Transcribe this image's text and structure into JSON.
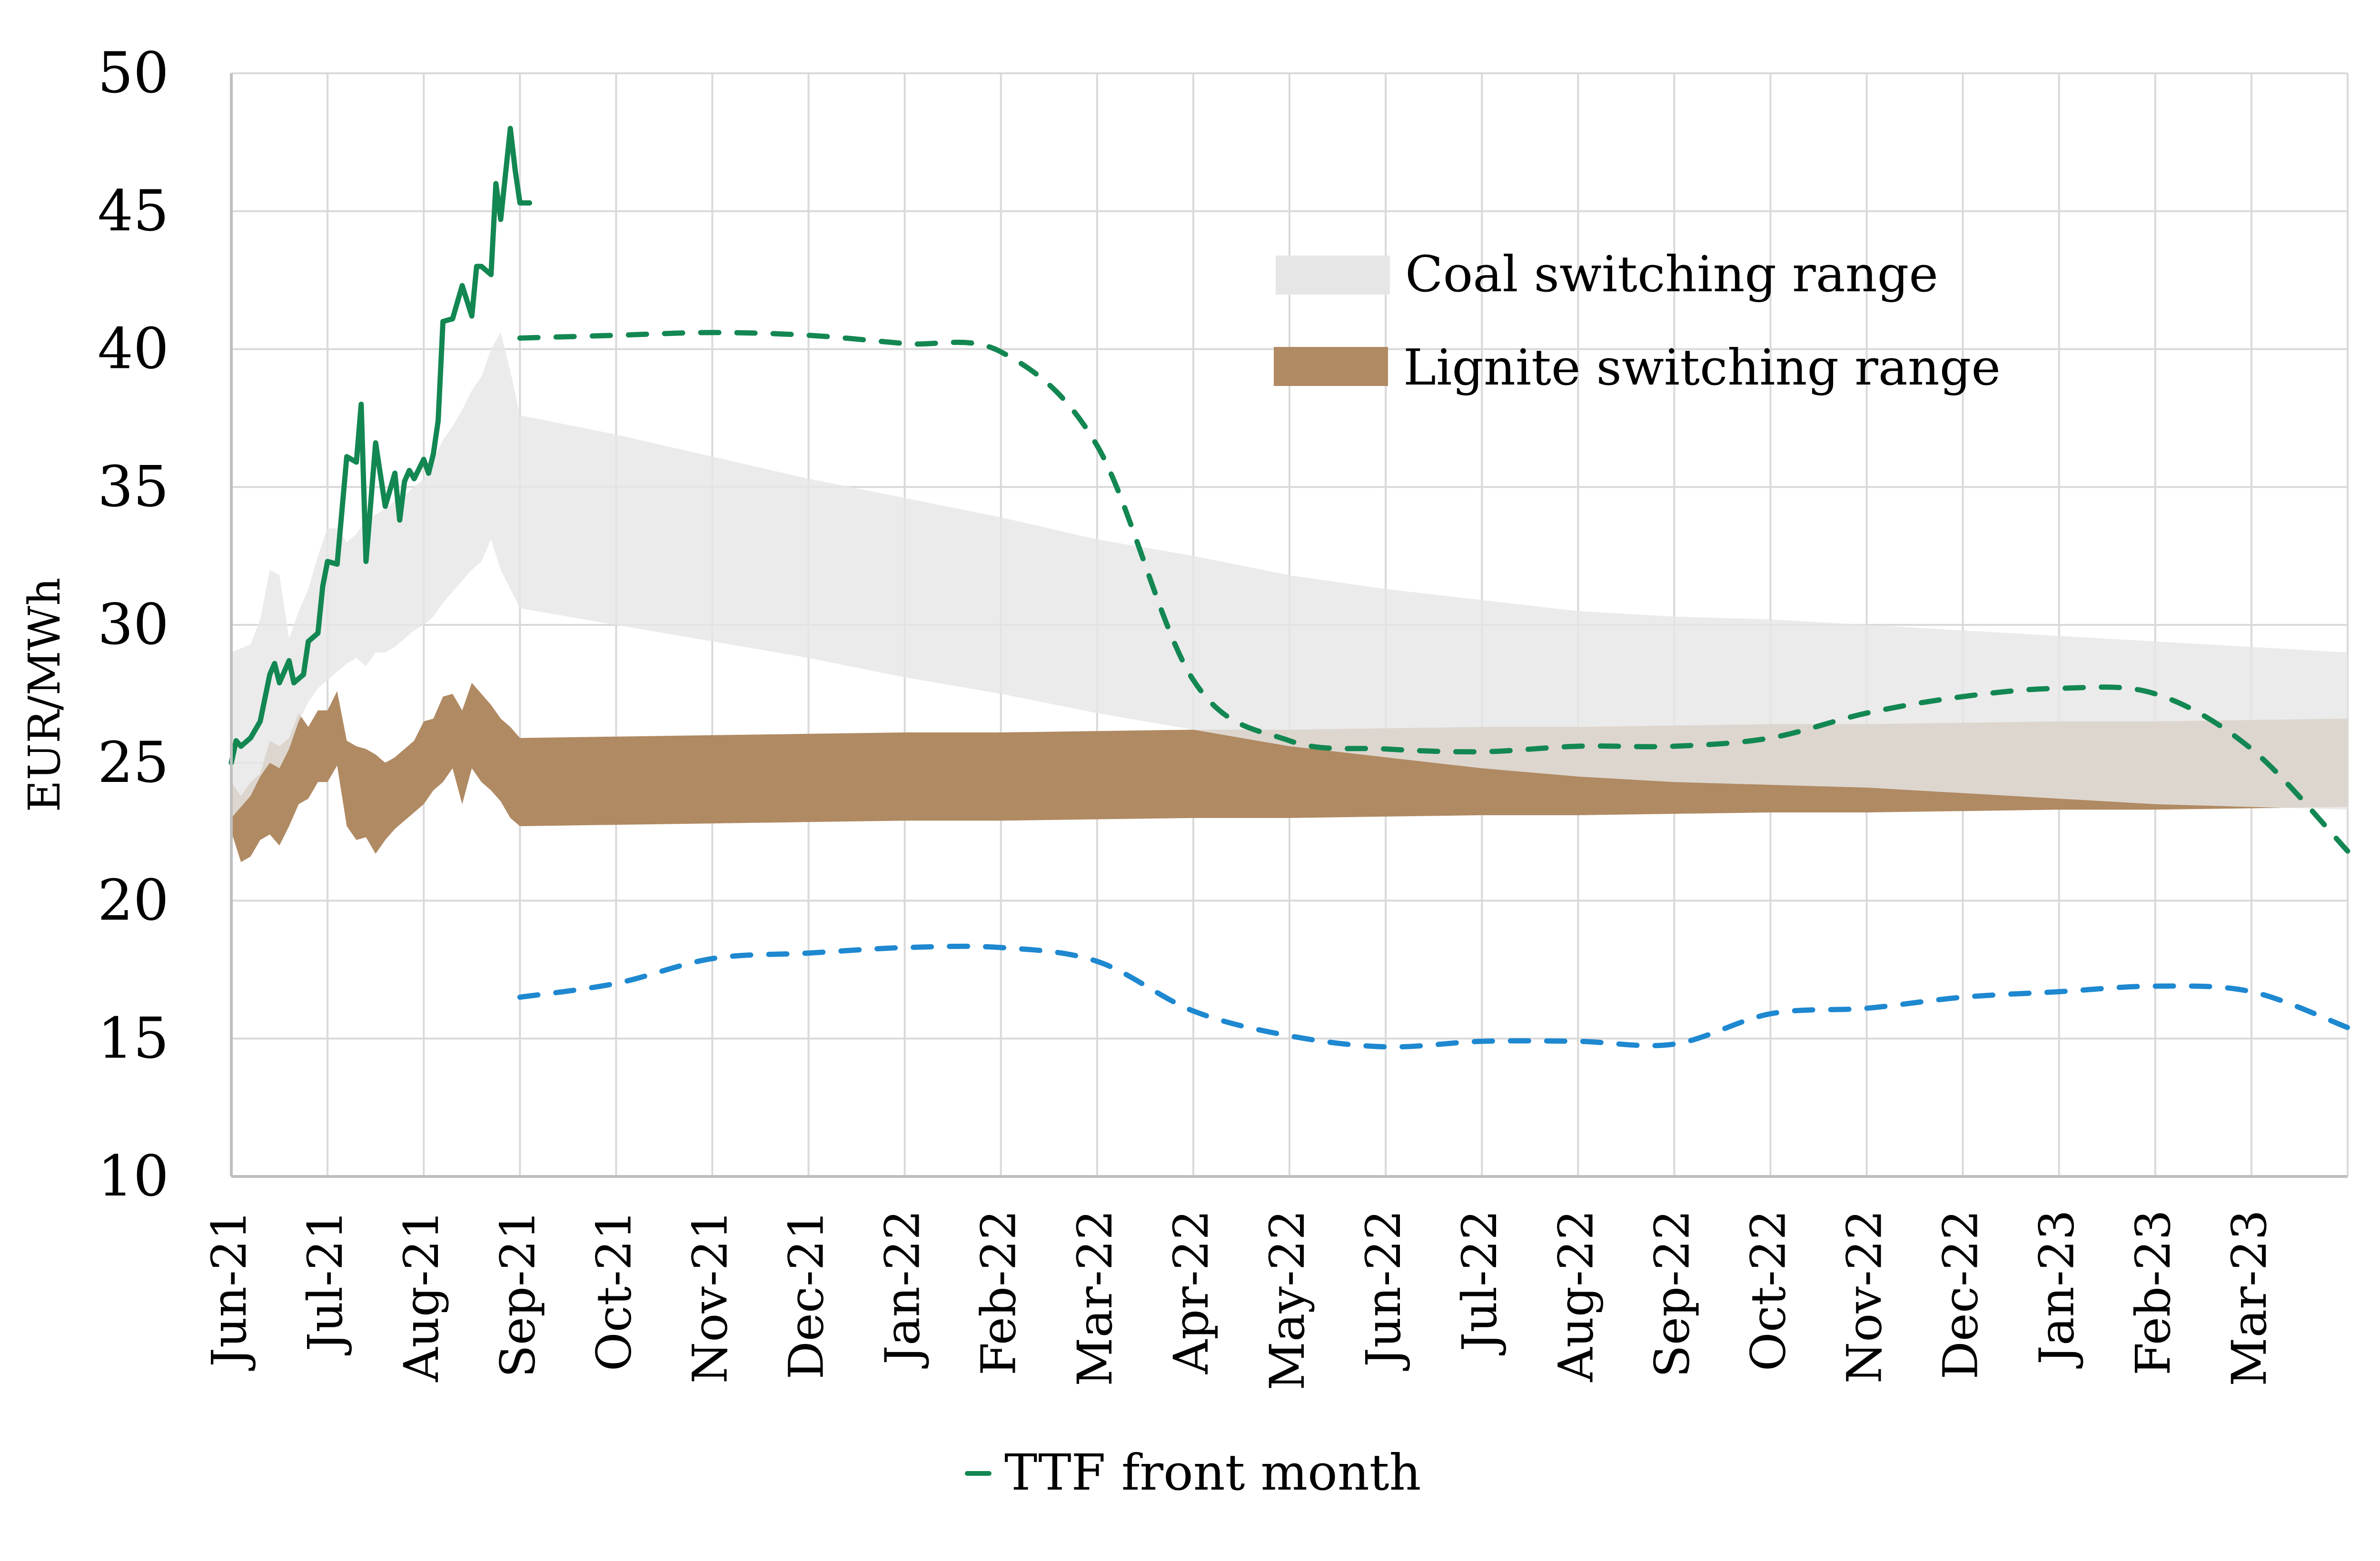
{
  "chart_data": {
    "type": "line",
    "title": "",
    "xlabel": "",
    "ylabel": "EUR/MWh",
    "ylim": [
      10,
      50
    ],
    "yticks": [
      10,
      15,
      20,
      25,
      30,
      35,
      40,
      45,
      50
    ],
    "grid": true,
    "x_tick_labels": [
      "Jun-21",
      "Jul-21",
      "Aug-21",
      "Sep-21",
      "Oct-21",
      "Nov-21",
      "Dec-21",
      "Jan-22",
      "Feb-22",
      "Mar-22",
      "Apr-22",
      "May-22",
      "Jun-22",
      "Jul-22",
      "Aug-22",
      "Sep-22",
      "Oct-22",
      "Nov-22",
      "Dec-22",
      "Jan-23",
      "Feb-23",
      "Mar-23"
    ],
    "x_range_months": [
      0,
      22
    ],
    "forward_x_months": [
      3,
      4,
      5,
      6,
      7,
      8,
      9,
      10,
      11,
      12,
      13,
      14,
      15,
      16,
      17,
      18,
      19,
      20,
      21,
      22
    ],
    "legend": {
      "placement": "top-right",
      "entries": [
        {
          "label": "Coal switching range",
          "color": "#e6e6e6"
        },
        {
          "label": "Lignite switching range",
          "color": "#b08a63"
        }
      ]
    },
    "bottom_legend": {
      "placement": "bottom",
      "entries": [
        {
          "label": "TTF front month",
          "color": "#138752"
        }
      ]
    },
    "colors": {
      "ttf": "#138752",
      "blue_forward": "#1e88d0",
      "coal": "#e6e6e6",
      "lignite": "#b08a63",
      "overlap": "#d9cdc3"
    },
    "series": [
      {
        "name": "TTF front month",
        "style": "solid",
        "x_months": [
          0,
          0.05,
          0.1,
          0.2,
          0.3,
          0.4,
          0.45,
          0.5,
          0.6,
          0.65,
          0.75,
          0.8,
          0.9,
          0.95,
          1.0,
          1.1,
          1.2,
          1.3,
          1.35,
          1.4,
          1.5,
          1.6,
          1.7,
          1.75,
          1.8,
          1.85,
          1.9,
          2.0,
          2.05,
          2.1,
          2.15,
          2.2,
          2.3,
          2.4,
          2.5,
          2.55,
          2.6,
          2.7,
          2.75,
          2.8,
          2.9,
          2.95,
          3.0,
          3.05,
          3.1
        ],
        "values": [
          25.0,
          25.8,
          25.6,
          25.9,
          26.5,
          28.2,
          28.6,
          27.9,
          28.7,
          27.9,
          28.2,
          29.4,
          29.7,
          31.4,
          32.3,
          32.2,
          36.1,
          35.9,
          38.0,
          32.3,
          36.6,
          34.3,
          35.5,
          33.8,
          35.2,
          35.6,
          35.3,
          36.0,
          35.5,
          36.2,
          37.4,
          41.0,
          41.1,
          42.3,
          41.2,
          43.0,
          43.0,
          42.7,
          46.0,
          44.7,
          48.0,
          46.5,
          45.3,
          45.3,
          45.3
        ]
      },
      {
        "name": "TTF forward curve",
        "style": "dashed",
        "values": [
          40.4,
          40.5,
          40.6,
          40.5,
          40.2,
          39.9,
          36.5,
          28.0,
          25.8,
          25.5,
          25.4,
          25.6,
          25.6,
          25.9,
          26.8,
          27.4,
          27.7,
          27.5,
          25.5,
          21.8
        ]
      },
      {
        "name": "Blue forward curve",
        "style": "dashed",
        "values": [
          16.5,
          17.0,
          17.9,
          18.1,
          18.3,
          18.3,
          17.8,
          16.0,
          15.1,
          14.7,
          14.9,
          14.9,
          14.8,
          15.9,
          16.1,
          16.5,
          16.7,
          16.9,
          16.7,
          15.4
        ]
      }
    ],
    "bands": [
      {
        "name": "Coal switching range",
        "hist_x_months": [
          0,
          0.2,
          0.3,
          0.4,
          0.5,
          0.6,
          0.7,
          0.8,
          0.9,
          1.0,
          1.1,
          1.2,
          1.3,
          1.4,
          1.5,
          1.6,
          1.7,
          1.8,
          1.9,
          2.0,
          2.1,
          2.2,
          2.3,
          2.4,
          2.5,
          2.6,
          2.7,
          2.8,
          2.9,
          3.0
        ],
        "hist_upper": [
          29.0,
          29.3,
          30.2,
          32.0,
          31.8,
          29.5,
          30.5,
          31.3,
          32.5,
          33.5,
          33.5,
          33.0,
          33.3,
          33.8,
          34.0,
          34.2,
          34.5,
          34.7,
          35.0,
          35.3,
          36.0,
          36.7,
          37.2,
          37.8,
          38.5,
          39.0,
          40.0,
          40.6,
          39.2,
          37.6
        ],
        "hist_lower": [
          23.0,
          23.8,
          24.5,
          25.0,
          24.8,
          25.5,
          26.5,
          27.2,
          27.7,
          28.0,
          28.3,
          28.6,
          28.8,
          28.5,
          29.0,
          29.0,
          29.2,
          29.5,
          29.8,
          30.0,
          30.3,
          30.8,
          31.2,
          31.6,
          32.0,
          32.3,
          33.1,
          32.0,
          31.3,
          30.6
        ],
        "upper": [
          37.6,
          36.9,
          36.1,
          35.3,
          34.6,
          33.9,
          33.1,
          32.5,
          31.8,
          31.3,
          30.9,
          30.5,
          30.3,
          30.2,
          30.0,
          29.8,
          29.6,
          29.4,
          29.2,
          29.0
        ],
        "lower": [
          30.6,
          30.0,
          29.4,
          28.8,
          28.1,
          27.5,
          26.8,
          26.2,
          25.6,
          25.2,
          24.8,
          24.5,
          24.3,
          24.2,
          24.1,
          23.9,
          23.7,
          23.5,
          23.4,
          23.3
        ]
      },
      {
        "name": "Lignite switching range",
        "hist_x_months": [
          0,
          0.1,
          0.2,
          0.3,
          0.4,
          0.5,
          0.6,
          0.7,
          0.8,
          0.9,
          1.0,
          1.1,
          1.2,
          1.3,
          1.4,
          1.5,
          1.6,
          1.7,
          1.8,
          1.9,
          2.0,
          2.1,
          2.2,
          2.3,
          2.4,
          2.5,
          2.6,
          2.7,
          2.8,
          2.9,
          3.0
        ],
        "hist_upper": [
          24.3,
          23.8,
          24.3,
          24.6,
          25.8,
          25.6,
          25.9,
          26.8,
          26.3,
          26.9,
          26.9,
          27.6,
          25.8,
          25.6,
          25.5,
          25.3,
          25.0,
          25.2,
          25.5,
          25.8,
          26.5,
          26.6,
          27.4,
          27.5,
          26.9,
          27.9,
          27.5,
          27.1,
          26.6,
          26.3,
          25.9
        ],
        "hist_lower": [
          22.5,
          21.4,
          21.6,
          22.2,
          22.4,
          22.0,
          22.7,
          23.5,
          23.7,
          24.3,
          24.3,
          24.9,
          22.7,
          22.2,
          22.3,
          21.7,
          22.2,
          22.6,
          22.9,
          23.2,
          23.5,
          24.0,
          24.3,
          24.8,
          23.5,
          24.8,
          24.3,
          24.0,
          23.6,
          23.0,
          22.7
        ],
        "upper": [
          25.9,
          25.95,
          26.0,
          26.05,
          26.1,
          26.1,
          26.15,
          26.2,
          26.2,
          26.25,
          26.3,
          26.3,
          26.35,
          26.4,
          26.4,
          26.45,
          26.5,
          26.5,
          26.55,
          26.6
        ],
        "lower": [
          22.7,
          22.75,
          22.8,
          22.85,
          22.9,
          22.9,
          22.95,
          23.0,
          23.0,
          23.05,
          23.1,
          23.1,
          23.15,
          23.2,
          23.2,
          23.25,
          23.3,
          23.3,
          23.35,
          23.4
        ]
      }
    ]
  }
}
